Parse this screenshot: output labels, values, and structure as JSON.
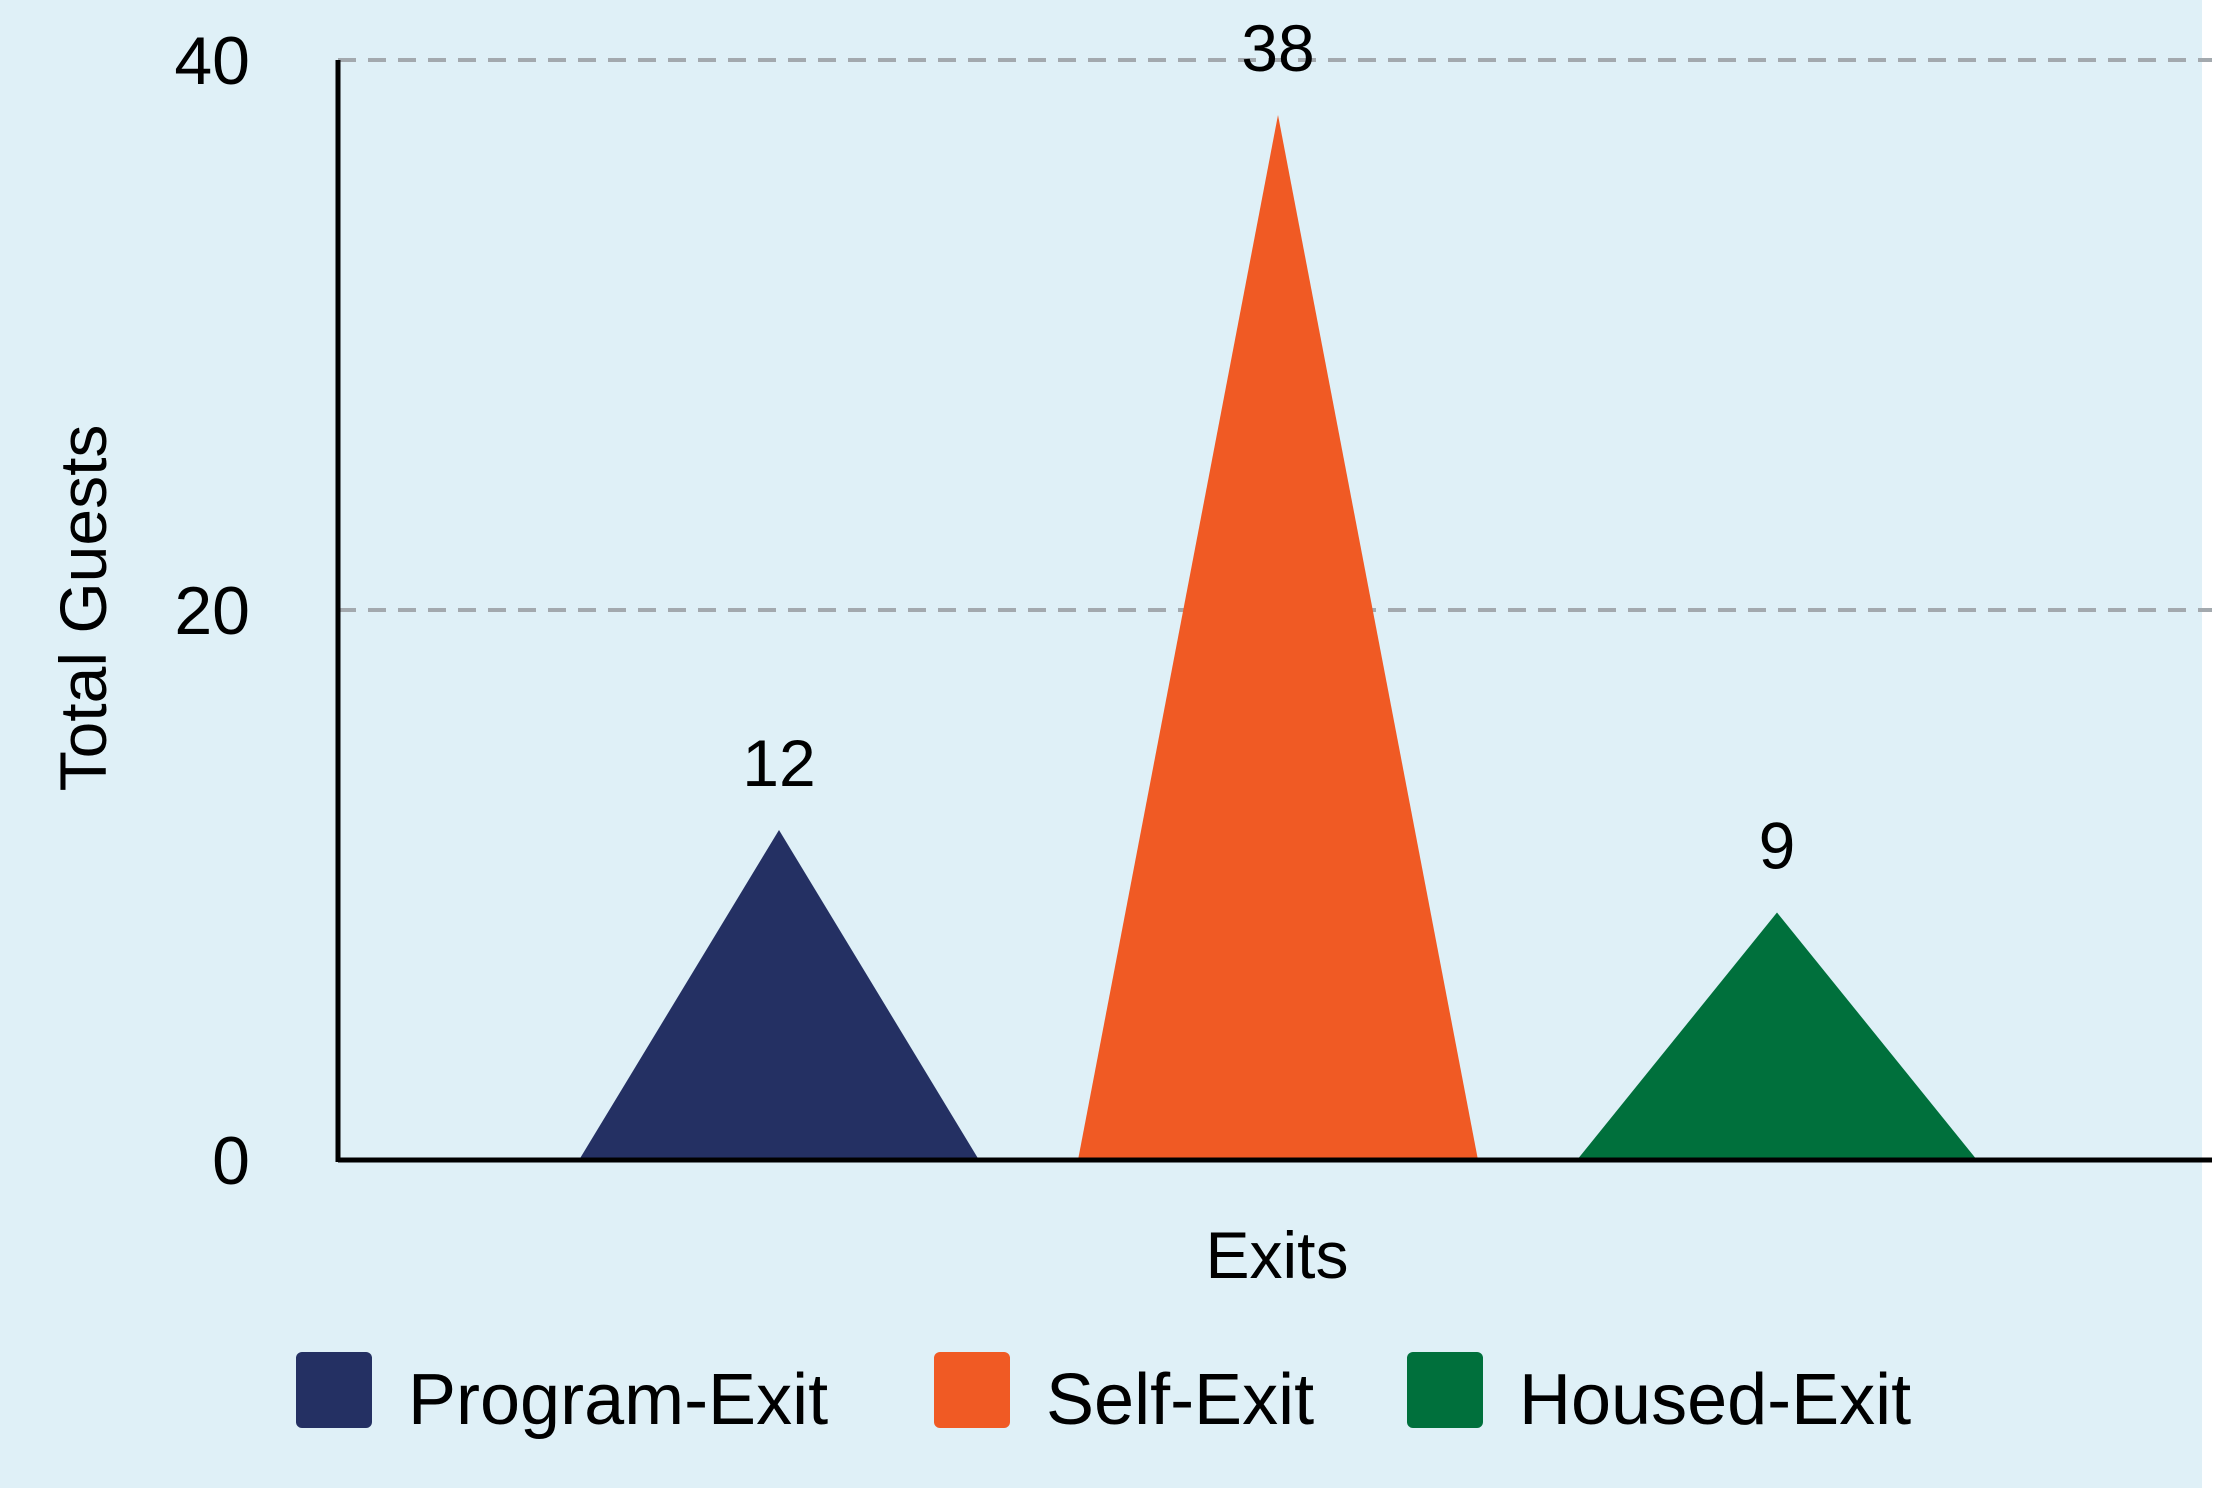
{
  "chart_data": {
    "type": "bar",
    "title": "",
    "xlabel": "Exits",
    "ylabel": "Total Guests",
    "ylim": [
      0,
      40
    ],
    "yticks": [
      0,
      20,
      40
    ],
    "grid": true,
    "grid_style": "dashed",
    "legend_position": "bottom",
    "bar_shape": "triangle",
    "categories": [
      "Program-Exit",
      "Self-Exit",
      "Housed-Exit"
    ],
    "series": [
      {
        "name": "Program-Exit",
        "value": 12,
        "color": "#243063"
      },
      {
        "name": "Self-Exit",
        "value": 38,
        "color": "#f05a24"
      },
      {
        "name": "Housed-Exit",
        "value": 9,
        "color": "#00703c"
      }
    ],
    "data_labels": [
      "12",
      "38",
      "9"
    ],
    "background_color": "#dff0f7",
    "grid_color": "#a3a9ae"
  }
}
